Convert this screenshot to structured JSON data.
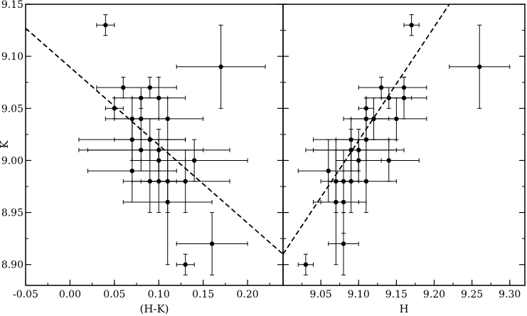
{
  "chart_data": [
    {
      "type": "scatter",
      "panel": "left",
      "xlabel": "(H-K)",
      "ylabel": "K",
      "xlim": [
        -0.05,
        0.24
      ],
      "ylim": [
        8.88,
        9.15
      ],
      "y_inverted": false,
      "x_ticks": [
        -0.05,
        0.0,
        0.05,
        0.1,
        0.15,
        0.2
      ],
      "x_tick_labels": [
        "-0.05",
        "0.00",
        "0.05",
        "0.10",
        "0.15",
        "0.20"
      ],
      "y_ticks": [
        8.9,
        8.95,
        9.0,
        9.05,
        9.1,
        9.15
      ],
      "y_tick_labels": [
        "8.90",
        "8.95",
        "9.00",
        "9.05",
        "9.10",
        "9.15"
      ],
      "grid": false,
      "fit_line": {
        "style": "dashed",
        "x": [
          -0.05,
          0.24
        ],
        "y": [
          9.127,
          8.91
        ]
      },
      "points": [
        {
          "x": 0.04,
          "y": 9.13,
          "xerr": 0.01,
          "yerr": 0.01
        },
        {
          "x": 0.17,
          "y": 9.09,
          "xerr": 0.05,
          "yerr": 0.04
        },
        {
          "x": 0.06,
          "y": 9.07,
          "xerr": 0.03,
          "yerr": 0.01
        },
        {
          "x": 0.08,
          "y": 9.06,
          "xerr": 0.03,
          "yerr": 0.01
        },
        {
          "x": 0.09,
          "y": 9.07,
          "xerr": 0.03,
          "yerr": 0.01
        },
        {
          "x": 0.1,
          "y": 9.06,
          "xerr": 0.03,
          "yerr": 0.02
        },
        {
          "x": 0.05,
          "y": 9.05,
          "xerr": 0.01,
          "yerr": 0.01
        },
        {
          "x": 0.07,
          "y": 9.04,
          "xerr": 0.03,
          "yerr": 0.02
        },
        {
          "x": 0.08,
          "y": 9.04,
          "xerr": 0.03,
          "yerr": 0.02
        },
        {
          "x": 0.11,
          "y": 9.04,
          "xerr": 0.04,
          "yerr": 0.02
        },
        {
          "x": 0.07,
          "y": 9.02,
          "xerr": 0.06,
          "yerr": 0.02
        },
        {
          "x": 0.09,
          "y": 9.02,
          "xerr": 0.04,
          "yerr": 0.02
        },
        {
          "x": 0.08,
          "y": 9.01,
          "xerr": 0.07,
          "yerr": 0.02
        },
        {
          "x": 0.1,
          "y": 9.01,
          "xerr": 0.08,
          "yerr": 0.02
        },
        {
          "x": 0.1,
          "y": 9.0,
          "xerr": 0.03,
          "yerr": 0.02
        },
        {
          "x": 0.14,
          "y": 9.0,
          "xerr": 0.06,
          "yerr": 0.02
        },
        {
          "x": 0.07,
          "y": 8.99,
          "xerr": 0.05,
          "yerr": 0.03
        },
        {
          "x": 0.09,
          "y": 8.98,
          "xerr": 0.03,
          "yerr": 0.03
        },
        {
          "x": 0.1,
          "y": 8.98,
          "xerr": 0.03,
          "yerr": 0.03
        },
        {
          "x": 0.11,
          "y": 8.98,
          "xerr": 0.02,
          "yerr": 0.03
        },
        {
          "x": 0.13,
          "y": 8.98,
          "xerr": 0.05,
          "yerr": 0.03
        },
        {
          "x": 0.11,
          "y": 8.96,
          "xerr": 0.05,
          "yerr": 0.06
        },
        {
          "x": 0.16,
          "y": 8.92,
          "xerr": 0.04,
          "yerr": 0.03
        },
        {
          "x": 0.13,
          "y": 8.9,
          "xerr": 0.01,
          "yerr": 0.01
        }
      ]
    },
    {
      "type": "scatter",
      "panel": "right",
      "xlabel": "H",
      "ylabel": "",
      "xlim": [
        9.0,
        9.32
      ],
      "ylim": [
        8.88,
        9.15
      ],
      "y_inverted": false,
      "x_ticks": [
        9.05,
        9.1,
        9.15,
        9.2,
        9.25,
        9.3
      ],
      "x_tick_labels": [
        "9.05",
        "9.10",
        "9.15",
        "9.20",
        "9.25",
        "9.30"
      ],
      "grid": false,
      "fit_line": {
        "style": "dashed",
        "x": [
          9.0,
          9.22
        ],
        "y": [
          8.91,
          9.15
        ]
      },
      "points": [
        {
          "x": 9.17,
          "y": 9.13,
          "xerr": 0.01,
          "yerr": 0.01
        },
        {
          "x": 9.26,
          "y": 9.09,
          "xerr": 0.04,
          "yerr": 0.04
        },
        {
          "x": 9.13,
          "y": 9.07,
          "xerr": 0.03,
          "yerr": 0.01
        },
        {
          "x": 9.16,
          "y": 9.07,
          "xerr": 0.03,
          "yerr": 0.01
        },
        {
          "x": 9.14,
          "y": 9.06,
          "xerr": 0.03,
          "yerr": 0.01
        },
        {
          "x": 9.16,
          "y": 9.06,
          "xerr": 0.03,
          "yerr": 0.02
        },
        {
          "x": 9.11,
          "y": 9.05,
          "xerr": 0.01,
          "yerr": 0.01
        },
        {
          "x": 9.11,
          "y": 9.04,
          "xerr": 0.03,
          "yerr": 0.02
        },
        {
          "x": 9.12,
          "y": 9.04,
          "xerr": 0.03,
          "yerr": 0.02
        },
        {
          "x": 9.15,
          "y": 9.04,
          "xerr": 0.04,
          "yerr": 0.02
        },
        {
          "x": 9.09,
          "y": 9.02,
          "xerr": 0.05,
          "yerr": 0.02
        },
        {
          "x": 9.11,
          "y": 9.02,
          "xerr": 0.04,
          "yerr": 0.02
        },
        {
          "x": 9.09,
          "y": 9.01,
          "xerr": 0.06,
          "yerr": 0.02
        },
        {
          "x": 9.1,
          "y": 9.01,
          "xerr": 0.06,
          "yerr": 0.02
        },
        {
          "x": 9.1,
          "y": 9.0,
          "xerr": 0.03,
          "yerr": 0.02
        },
        {
          "x": 9.14,
          "y": 9.0,
          "xerr": 0.04,
          "yerr": 0.02
        },
        {
          "x": 9.06,
          "y": 8.99,
          "xerr": 0.04,
          "yerr": 0.03
        },
        {
          "x": 9.07,
          "y": 8.98,
          "xerr": 0.02,
          "yerr": 0.03
        },
        {
          "x": 9.08,
          "y": 8.98,
          "xerr": 0.02,
          "yerr": 0.03
        },
        {
          "x": 9.09,
          "y": 8.98,
          "xerr": 0.02,
          "yerr": 0.03
        },
        {
          "x": 9.11,
          "y": 8.98,
          "xerr": 0.04,
          "yerr": 0.03
        },
        {
          "x": 9.07,
          "y": 8.96,
          "xerr": 0.03,
          "yerr": 0.06
        },
        {
          "x": 9.08,
          "y": 8.96,
          "xerr": 0.03,
          "yerr": 0.03
        },
        {
          "x": 9.08,
          "y": 8.92,
          "xerr": 0.02,
          "yerr": 0.03
        },
        {
          "x": 9.03,
          "y": 8.9,
          "xerr": 0.01,
          "yerr": 0.01
        }
      ]
    }
  ]
}
